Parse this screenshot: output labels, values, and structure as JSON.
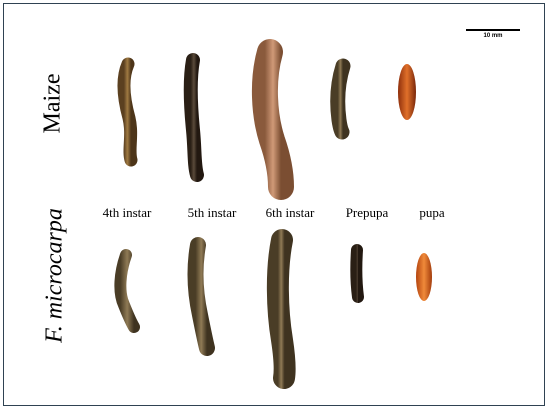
{
  "rows": {
    "top": "Maize",
    "bottom": "F. microcarpa"
  },
  "stages": [
    "4th instar",
    "5th instar",
    "6th instar",
    "Prepupa",
    "pupa"
  ],
  "scale_bar": {
    "label": "10 mm"
  },
  "colors": {
    "frame": "#2f4252",
    "larva_brown": "#7a5a2e",
    "larva_dark": "#3a2b1c",
    "larva_pink": "#b8825f",
    "pupa_orange": "#c2501a"
  }
}
